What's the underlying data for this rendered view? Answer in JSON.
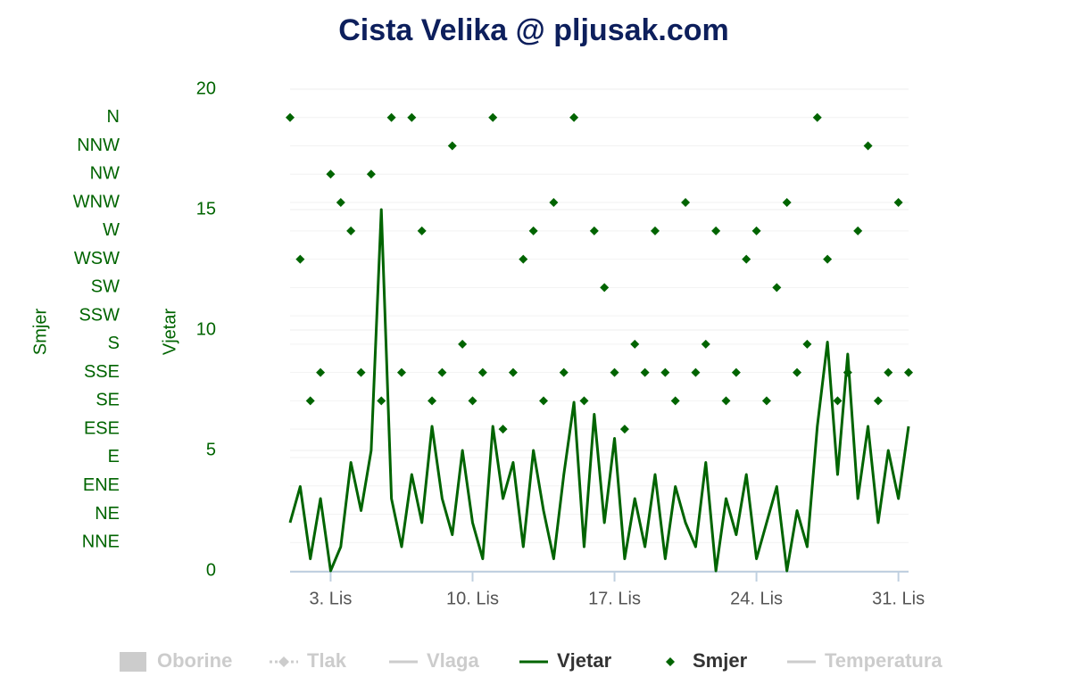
{
  "chart_data": {
    "type": "line",
    "title": "Cista Velika @ pljusak.com",
    "y_label": "Vjetar",
    "y2_label": "Smjer",
    "x": [
      1,
      1.5,
      2,
      2.5,
      3,
      3.5,
      4,
      4.5,
      5,
      5.5,
      6,
      6.5,
      7,
      7.5,
      8,
      8.5,
      9,
      9.5,
      10,
      10.5,
      11,
      11.5,
      12,
      12.5,
      13,
      13.5,
      14,
      14.5,
      15,
      15.5,
      16,
      16.5,
      17,
      17.5,
      18,
      18.5,
      19,
      19.5,
      20,
      20.5,
      21,
      21.5,
      22,
      22.5,
      23,
      23.5,
      24,
      24.5,
      25,
      25.5,
      26,
      26.5,
      27,
      27.5,
      28,
      28.5,
      29,
      29.5,
      30,
      30.5,
      31,
      31.5
    ],
    "xlim": [
      1,
      31.5
    ],
    "xticks": [
      {
        "value": 3,
        "label": "3. Lis"
      },
      {
        "value": 10,
        "label": "10. Lis"
      },
      {
        "value": 17,
        "label": "17. Lis"
      },
      {
        "value": 24,
        "label": "24. Lis"
      },
      {
        "value": 31,
        "label": "31. Lis"
      }
    ],
    "ylim": [
      0,
      20
    ],
    "yticks": [
      0,
      5,
      10,
      15,
      20
    ],
    "y2lim": [
      0,
      17
    ],
    "y2ticks": [
      {
        "value": 1,
        "label": "NNE"
      },
      {
        "value": 2,
        "label": "NE"
      },
      {
        "value": 3,
        "label": "ENE"
      },
      {
        "value": 4,
        "label": "E"
      },
      {
        "value": 5,
        "label": "ESE"
      },
      {
        "value": 6,
        "label": "SE"
      },
      {
        "value": 7,
        "label": "SSE"
      },
      {
        "value": 8,
        "label": "S"
      },
      {
        "value": 9,
        "label": "SSW"
      },
      {
        "value": 10,
        "label": "SW"
      },
      {
        "value": 11,
        "label": "WSW"
      },
      {
        "value": 12,
        "label": "W"
      },
      {
        "value": 13,
        "label": "WNW"
      },
      {
        "value": 14,
        "label": "NW"
      },
      {
        "value": 15,
        "label": "NNW"
      },
      {
        "value": 16,
        "label": "N"
      }
    ],
    "grid": true,
    "series": [
      {
        "name": "Vjetar",
        "type": "line",
        "color": "#006400",
        "values": [
          2,
          3.5,
          0.5,
          3,
          0,
          1,
          4.5,
          2.5,
          5,
          15,
          3,
          1,
          4,
          2,
          6,
          3,
          1.5,
          5,
          2,
          0.5,
          6,
          3,
          4.5,
          1,
          5,
          2.5,
          0.5,
          4,
          7,
          1,
          6.5,
          2,
          5.5,
          0.5,
          3,
          1,
          4,
          0.5,
          3.5,
          2,
          1,
          4.5,
          0,
          3,
          1.5,
          4,
          0.5,
          2,
          3.5,
          0,
          2.5,
          1,
          6,
          9.5,
          4,
          9,
          3,
          6,
          2,
          5,
          3,
          6
        ]
      },
      {
        "name": "Smjer",
        "type": "scatter",
        "axis": "y2",
        "color": "#006400",
        "values": [
          16,
          11,
          6,
          7,
          14,
          13,
          12,
          7,
          14,
          6,
          16,
          7,
          16,
          12,
          6,
          7,
          15,
          8,
          6,
          7,
          16,
          5,
          7,
          11,
          12,
          6,
          13,
          7,
          16,
          6,
          12,
          10,
          7,
          5,
          8,
          7,
          12,
          7,
          6,
          13,
          7,
          8,
          12,
          6,
          7,
          11,
          12,
          6,
          10,
          13,
          7,
          8,
          16,
          11,
          6,
          7,
          12,
          15,
          6,
          7,
          13,
          7
        ]
      }
    ],
    "legend": [
      {
        "name": "Oborine",
        "symbol": "rect",
        "visible": false
      },
      {
        "name": "Tlak",
        "symbol": "dash-diamond",
        "visible": false
      },
      {
        "name": "Vlaga",
        "symbol": "line",
        "visible": false
      },
      {
        "name": "Vjetar",
        "symbol": "line",
        "visible": true
      },
      {
        "name": "Smjer",
        "symbol": "diamond",
        "visible": true
      },
      {
        "name": "Temperatura",
        "symbol": "line",
        "visible": false
      }
    ]
  }
}
